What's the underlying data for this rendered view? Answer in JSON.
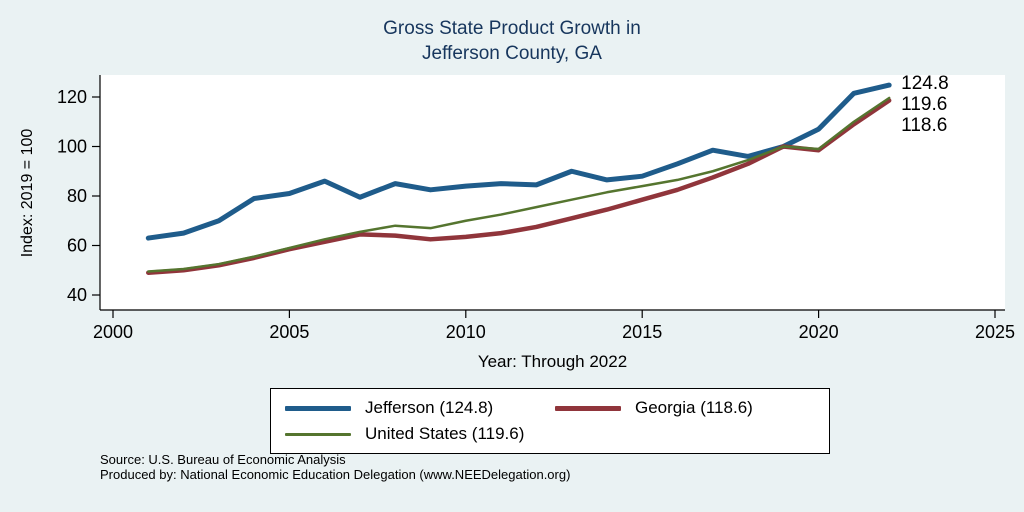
{
  "title": {
    "line1": "Gross State Product Growth in",
    "line2": "Jefferson County, GA"
  },
  "source": {
    "line1": "Source: U.S. Bureau of Economic Analysis",
    "line2": "Produced by: National Economic Education Delegation (www.NEEDelegation.org)"
  },
  "chart_data": {
    "type": "line",
    "title": "Gross State Product Growth in Jefferson County, GA",
    "xlabel": "Year: Through 2022",
    "ylabel": "Index: 2019 = 100",
    "xlim": [
      2000,
      2025
    ],
    "ylim": [
      40,
      130
    ],
    "xticks": [
      2000,
      2005,
      2010,
      2015,
      2020,
      2025
    ],
    "yticks": [
      40,
      60,
      80,
      100,
      120
    ],
    "grid": false,
    "legend_position": "bottom",
    "background": "#eaf2f3",
    "plot_background": "#ffffff",
    "x": [
      2001,
      2002,
      2003,
      2004,
      2005,
      2006,
      2007,
      2008,
      2009,
      2010,
      2011,
      2012,
      2013,
      2014,
      2015,
      2016,
      2017,
      2018,
      2019,
      2020,
      2021,
      2022
    ],
    "series": [
      {
        "name": "Jefferson",
        "legend_label": "Jefferson  (124.8)",
        "end_label": "124.8",
        "color": "#1f5c8b",
        "width": 5,
        "values": [
          63,
          65,
          70,
          79,
          81,
          86,
          79.5,
          85,
          82.5,
          84,
          85,
          84.5,
          90,
          86.5,
          88,
          93,
          98.5,
          96,
          100,
          107,
          121.5,
          124.8
        ]
      },
      {
        "name": "Georgia",
        "legend_label": "Georgia (118.6)",
        "end_label": "118.6",
        "color": "#90353b",
        "width": 4.5,
        "values": [
          49,
          50,
          52,
          55,
          58.5,
          61.5,
          64.5,
          64,
          62.5,
          63.5,
          65,
          67.5,
          71,
          74.5,
          78.5,
          82.5,
          87.5,
          93,
          100,
          98.5,
          109,
          118.6
        ]
      },
      {
        "name": "United States",
        "legend_label": "United States (119.6)",
        "end_label": "119.6",
        "color": "#55752f",
        "width": 2.5,
        "values": [
          49.5,
          50.5,
          52.5,
          55.5,
          59,
          62.5,
          65.5,
          68,
          67,
          70,
          72.5,
          75.5,
          78.5,
          81.5,
          84,
          86.5,
          90,
          94.5,
          100,
          99,
          110,
          119.6
        ]
      }
    ]
  }
}
